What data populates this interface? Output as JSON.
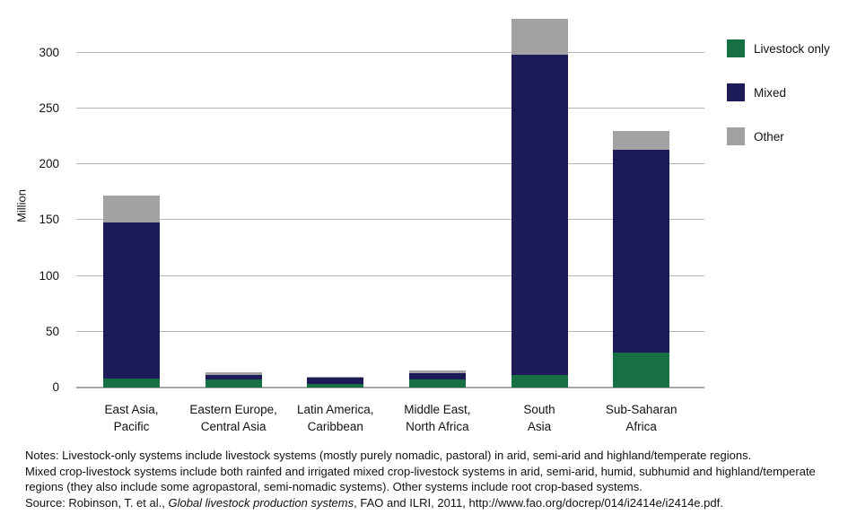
{
  "chart_data": {
    "type": "bar",
    "stacked": true,
    "title": "",
    "xlabel": "",
    "ylabel": "Million",
    "ylim": [
      0,
      335
    ],
    "yticks": [
      0,
      50,
      100,
      150,
      200,
      250,
      300
    ],
    "grid": true,
    "legend_position": "top-right",
    "categories": [
      {
        "line1": "East Asia,",
        "line2": "Pacific"
      },
      {
        "line1": "Eastern Europe,",
        "line2": "Central Asia"
      },
      {
        "line1": "Latin America,",
        "line2": "Caribbean"
      },
      {
        "line1": "Middle East,",
        "line2": "North Africa"
      },
      {
        "line1": "South",
        "line2": "Asia"
      },
      {
        "line1": "Sub-Saharan",
        "line2": "Africa"
      }
    ],
    "series": [
      {
        "name": "Livestock only",
        "color": "#176f44",
        "values": [
          8,
          7,
          3,
          7,
          11,
          31
        ]
      },
      {
        "name": "Mixed",
        "color": "#1c1b57",
        "values": [
          140,
          4,
          6,
          6,
          287,
          182
        ]
      },
      {
        "name": "Other",
        "color": "#a2a2a2",
        "values": [
          24,
          3,
          1,
          2,
          32,
          17
        ]
      }
    ],
    "totals": [
      172,
      14,
      10,
      15,
      330,
      230
    ]
  },
  "notes": {
    "line1": "Notes: Livestock-only systems include livestock systems (mostly purely nomadic, pastoral) in arid, semi-arid and highland/temperate regions.",
    "line2": "Mixed crop-livestock systems include both rainfed and irrigated mixed crop-livestock systems in arid, semi-arid, humid, subhumid and highland/temperate",
    "line3": "regions (they also include some agropastoral, semi-nomadic systems). Other systems include root crop-based systems."
  },
  "source": {
    "prefix": "Source: Robinson, T. et al., ",
    "title": "Global livestock production systems",
    "suffix": ", FAO and ILRI, 2011, http://www.fao.org/docrep/014/i2414e/i2414e.pdf."
  }
}
